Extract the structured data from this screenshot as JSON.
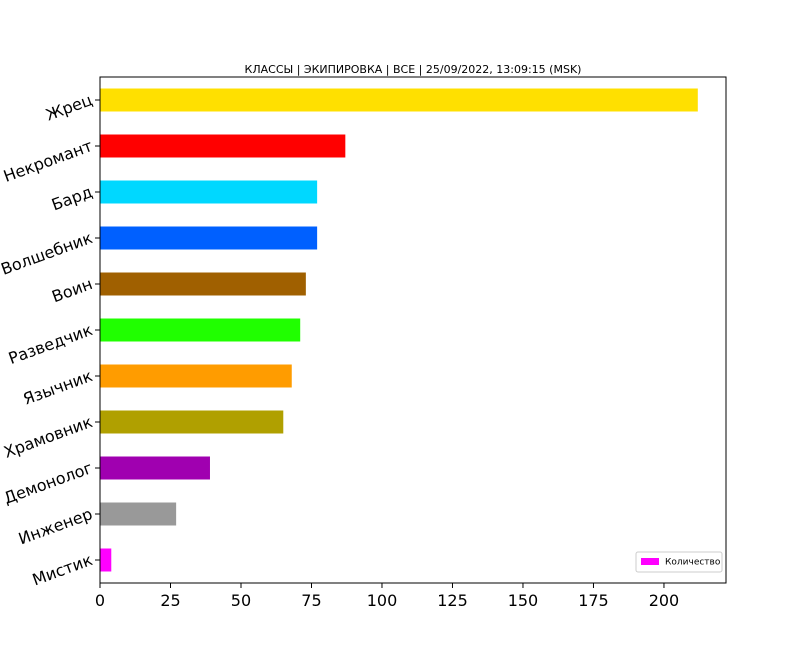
{
  "chart_data": {
    "type": "barh",
    "title": "КЛАССЫ | ЭКИПИРОВКА | ВСЕ | 25/09/2022, 13:09:15 (MSK)",
    "categories": [
      "Жрец",
      "Некромант",
      "Бард",
      "Волшебник",
      "Воин",
      "Разведчик",
      "Язычник",
      "Храмовник",
      "Демонолог",
      "Инженер",
      "Мистик"
    ],
    "series": [
      {
        "name": "Количество",
        "colors": [
          "#ffe000",
          "#ff0000",
          "#00d8ff",
          "#0060ff",
          "#a06000",
          "#20ff00",
          "#ff9c00",
          "#b0a000",
          "#a000b0",
          "#999999",
          "#ff00ff"
        ],
        "values": [
          212,
          87,
          77,
          77,
          73,
          71,
          68,
          65,
          39,
          27,
          4
        ]
      }
    ],
    "xlim": [
      0,
      222
    ],
    "xticks": [
      0,
      25,
      50,
      75,
      100,
      125,
      150,
      175,
      200
    ],
    "legend": "lower right"
  }
}
